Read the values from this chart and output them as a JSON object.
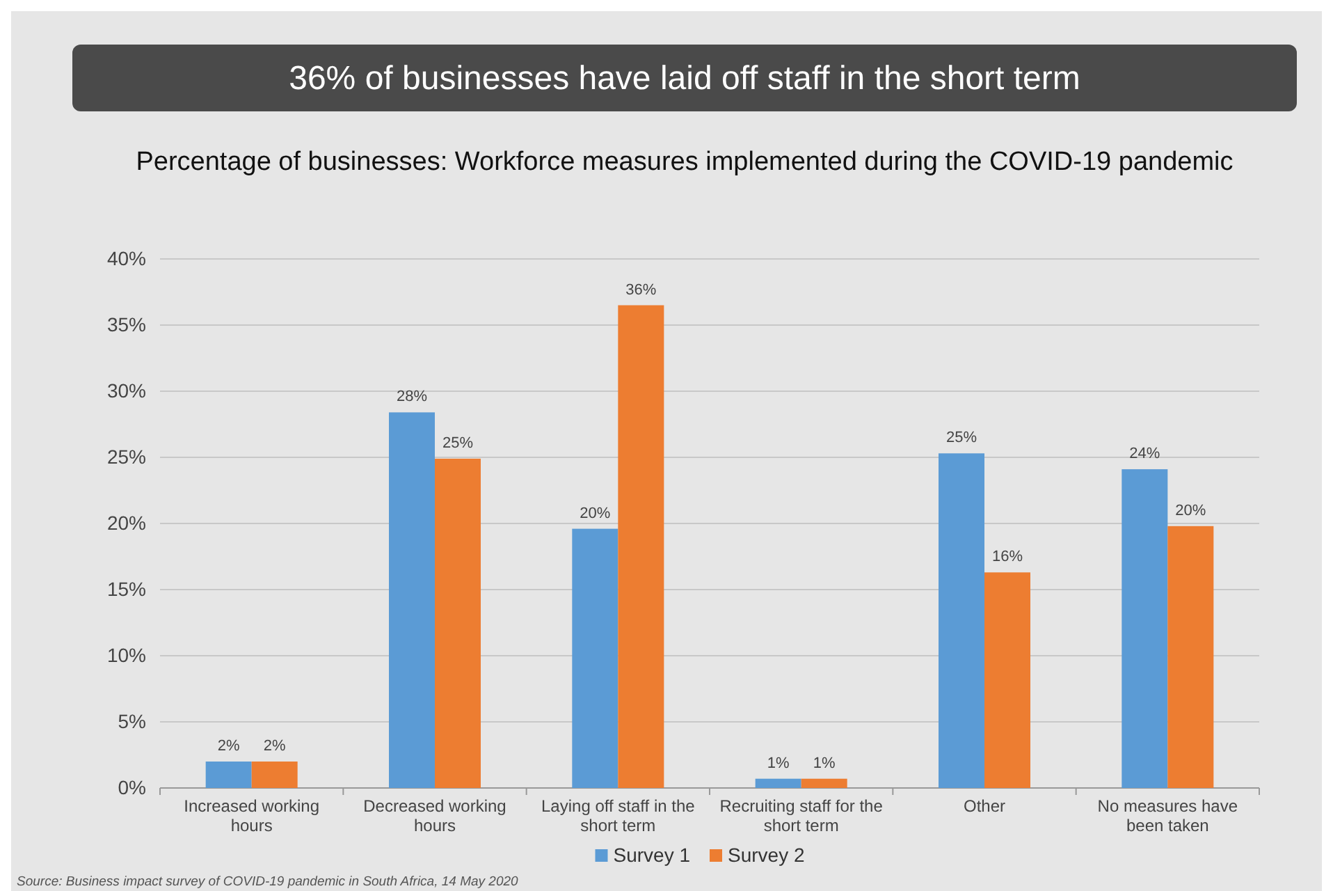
{
  "chart_data": {
    "type": "bar",
    "title": "36% of businesses have laid off staff in the short term",
    "subtitle": "Percentage of businesses: Workforce measures implemented during the COVID-19 pandemic",
    "categories": [
      "Increased working hours",
      "Decreased working hours",
      "Laying off staff in the short term",
      "Recruiting staff for the short term",
      "Other",
      "No measures have been taken"
    ],
    "series": [
      {
        "name": "Survey 1",
        "color": "#5b9bd5",
        "values": [
          2,
          28.4,
          19.6,
          0.7,
          25.3,
          24.1
        ],
        "value_labels": [
          "2%",
          "28%",
          "20%",
          "1%",
          "25%",
          "24%"
        ]
      },
      {
        "name": "Survey 2",
        "color": "#ed7d31",
        "values": [
          2,
          24.9,
          36.5,
          0.7,
          16.3,
          19.8
        ],
        "value_labels": [
          "2%",
          "25%",
          "36%",
          "1%",
          "16%",
          "20%"
        ]
      }
    ],
    "ylim": [
      0,
      40
    ],
    "yticks": [
      {
        "value": 0,
        "label": "0%"
      },
      {
        "value": 5,
        "label": "5%"
      },
      {
        "value": 10,
        "label": "10%"
      },
      {
        "value": 15,
        "label": "15%"
      },
      {
        "value": 20,
        "label": "20%"
      },
      {
        "value": 25,
        "label": "25%"
      },
      {
        "value": 30,
        "label": "30%"
      },
      {
        "value": 35,
        "label": "35%"
      },
      {
        "value": 40,
        "label": "40%"
      }
    ],
    "grid": "y",
    "legend": "bottom",
    "annotations": [
      "Source: Business impact survey of COVID-19 pandemic in South Africa, 14 May 2020"
    ]
  }
}
